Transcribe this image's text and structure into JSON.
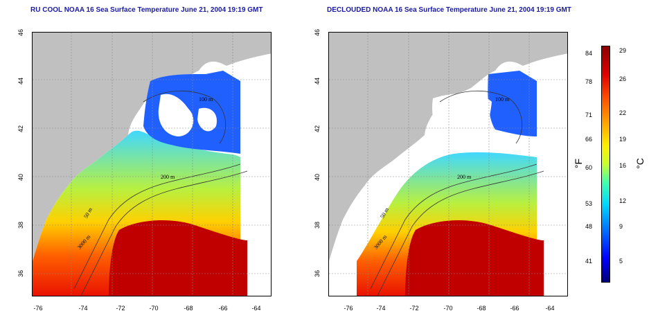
{
  "left_map": {
    "title": "RU COOL NOAA 16 Sea Surface Temperature June 21, 2004 19:19 GMT"
  },
  "right_map": {
    "title": "DECLOUDED NOAA 16 Sea Surface Temperature June 21, 2004 19:19 GMT"
  },
  "axes": {
    "x_ticks": [
      "-76",
      "-74",
      "-72",
      "-70",
      "-68",
      "-66",
      "-64"
    ],
    "y_ticks": [
      "46",
      "44",
      "42",
      "40",
      "38",
      "36"
    ]
  },
  "contour_labels": [
    "50 m",
    "100 m",
    "200 m",
    "3000 m"
  ],
  "colorbar": {
    "fahrenheit_ticks": [
      "84",
      "78",
      "71",
      "66",
      "60",
      "53",
      "48",
      "41"
    ],
    "celsius_ticks": [
      "29",
      "26",
      "22",
      "19",
      "16",
      "12",
      "9",
      "5"
    ],
    "fahrenheit_unit": "°F",
    "celsius_unit": "°C"
  },
  "colors": {
    "land": "#c0c0c0",
    "title": "#1a1aa0",
    "cold": "#0000ff",
    "warm": "#e00000"
  }
}
